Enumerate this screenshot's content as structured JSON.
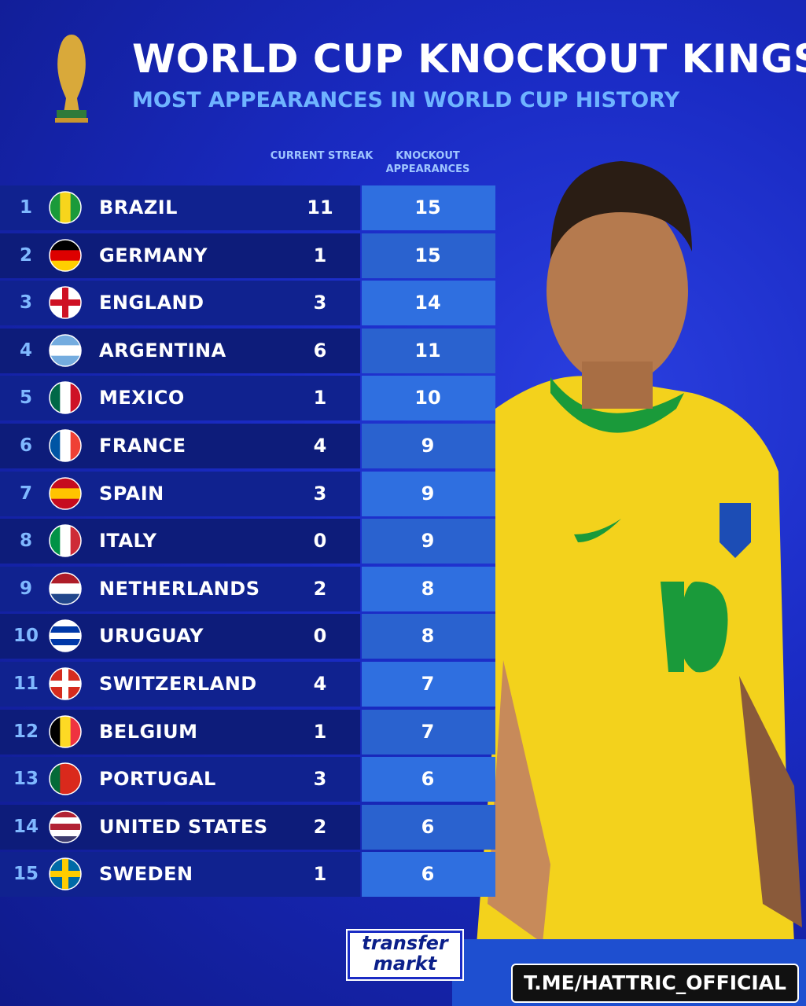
{
  "header": {
    "title": "WORLD CUP KNOCKOUT KINGS",
    "subtitle": "MOST APPEARANCES IN WORLD CUP HISTORY"
  },
  "table": {
    "columns": [
      "CURRENT STREAK",
      "KNOCKOUT APPEARANCES"
    ],
    "rows": [
      [
        1,
        "BRAZIL",
        11,
        15
      ],
      [
        2,
        "GERMANY",
        1,
        15
      ],
      [
        3,
        "ENGLAND",
        3,
        14
      ],
      [
        4,
        "ARGENTINA",
        6,
        11
      ],
      [
        5,
        "MEXICO",
        1,
        10
      ],
      [
        6,
        "FRANCE",
        4,
        9
      ],
      [
        7,
        "SPAIN",
        3,
        9
      ],
      [
        8,
        "ITALY",
        0,
        9
      ],
      [
        9,
        "NETHERLANDS",
        2,
        8
      ],
      [
        10,
        "URUGUAY",
        0,
        8
      ],
      [
        11,
        "SWITZERLAND",
        4,
        7
      ],
      [
        12,
        "BELGIUM",
        1,
        7
      ],
      [
        13,
        "PORTUGAL",
        3,
        6
      ],
      [
        14,
        "UNITED STATES",
        2,
        6
      ],
      [
        15,
        "SWEDEN",
        1,
        6
      ]
    ]
  },
  "footer": {
    "logo": [
      "transfer",
      "markt"
    ],
    "watermark": "T.ME/HATTRIC_OFFICIAL"
  }
}
